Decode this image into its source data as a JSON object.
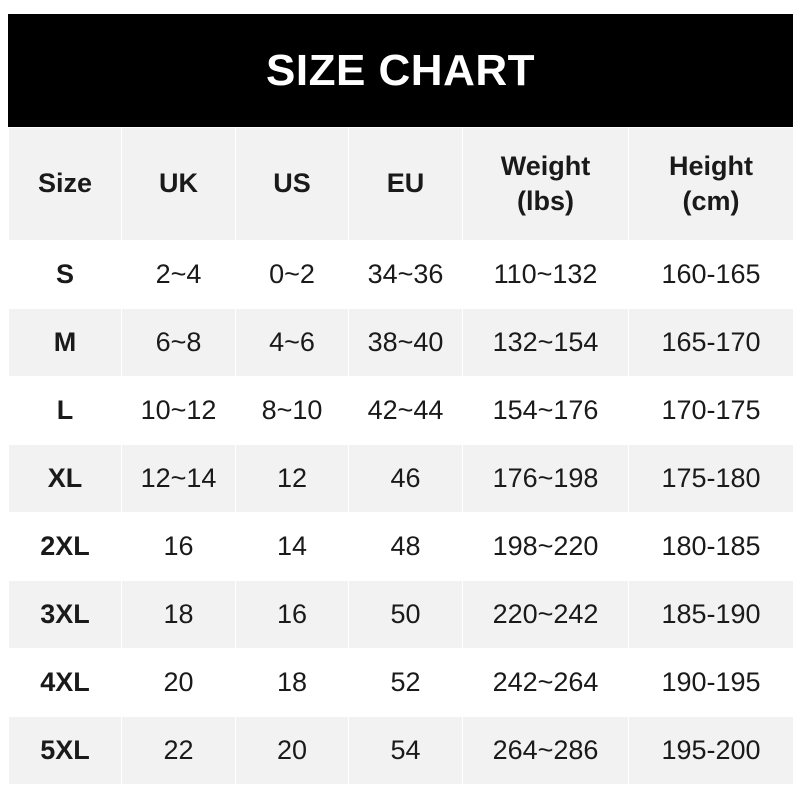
{
  "title": "SIZE CHART",
  "headers": [
    "Size",
    "UK",
    "US",
    "EU",
    "Weight\n(lbs)",
    "Height\n(cm)"
  ],
  "rows": [
    [
      "S",
      "2~4",
      "0~2",
      "34~36",
      "110~132",
      "160-165"
    ],
    [
      "M",
      "6~8",
      "4~6",
      "38~40",
      "132~154",
      "165-170"
    ],
    [
      "L",
      "10~12",
      "8~10",
      "42~44",
      "154~176",
      "170-175"
    ],
    [
      "XL",
      "12~14",
      "12",
      "46",
      "176~198",
      "175-180"
    ],
    [
      "2XL",
      "16",
      "14",
      "48",
      "198~220",
      "180-185"
    ],
    [
      "3XL",
      "18",
      "16",
      "50",
      "220~242",
      "185-190"
    ],
    [
      "4XL",
      "20",
      "18",
      "52",
      "242~264",
      "190-195"
    ],
    [
      "5XL",
      "22",
      "20",
      "54",
      "264~286",
      "195-200"
    ]
  ],
  "colors": {
    "header_bg": "#000000",
    "header_text": "#ffffff",
    "stripe": "#f2f2f2"
  }
}
